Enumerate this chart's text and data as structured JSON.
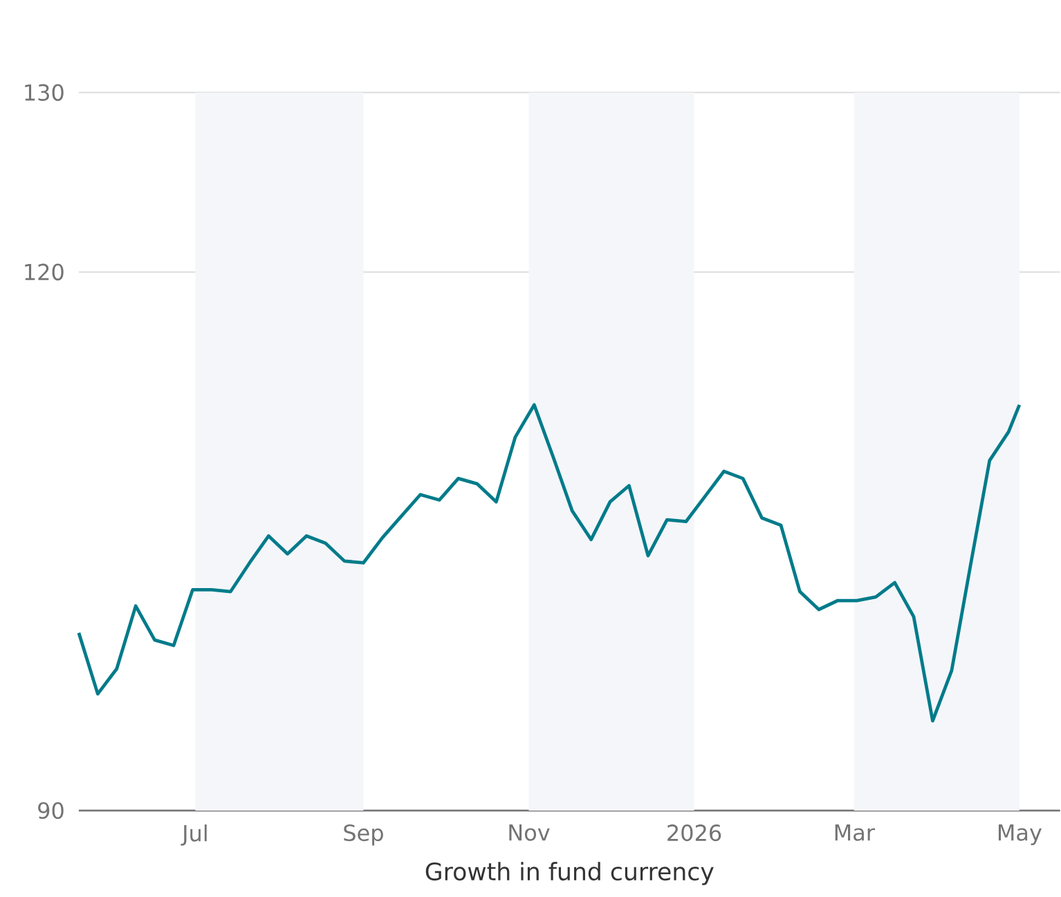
{
  "chart_data": {
    "type": "line",
    "xlabel": "Growth in fund currency",
    "x": [
      "2025-05-19",
      "2025-05-26",
      "2025-06-02",
      "2025-06-09",
      "2025-06-16",
      "2025-06-23",
      "2025-06-30",
      "2025-07-07",
      "2025-07-14",
      "2025-07-21",
      "2025-07-28",
      "2025-08-04",
      "2025-08-11",
      "2025-08-18",
      "2025-08-25",
      "2025-09-01",
      "2025-09-08",
      "2025-09-15",
      "2025-09-22",
      "2025-09-29",
      "2025-10-06",
      "2025-10-13",
      "2025-10-20",
      "2025-10-27",
      "2025-11-03",
      "2025-11-10",
      "2025-11-17",
      "2025-11-24",
      "2025-12-01",
      "2025-12-08",
      "2025-12-15",
      "2025-12-22",
      "2025-12-29",
      "2026-01-05",
      "2026-01-12",
      "2026-01-19",
      "2026-01-26",
      "2026-02-02",
      "2026-02-09",
      "2026-02-16",
      "2026-02-23",
      "2026-03-02",
      "2026-03-09",
      "2026-03-16",
      "2026-03-23",
      "2026-03-30",
      "2026-04-06",
      "2026-04-13",
      "2026-04-20",
      "2026-04-27",
      "2026-05-01"
    ],
    "series": [
      {
        "color": "#007b8a",
        "values": [
          99.9,
          96.5,
          97.9,
          101.4,
          99.5,
          99.2,
          102.3,
          102.3,
          102.2,
          103.8,
          105.3,
          104.3,
          105.3,
          104.9,
          103.9,
          103.8,
          105.2,
          106.4,
          107.6,
          107.3,
          108.5,
          108.2,
          107.2,
          110.8,
          112.6,
          109.7,
          106.7,
          105.1,
          107.2,
          108.1,
          104.2,
          106.2,
          106.1,
          107.5,
          108.9,
          108.5,
          106.3,
          105.9,
          102.2,
          101.2,
          101.7,
          101.7,
          101.9,
          102.7,
          100.8,
          95.0,
          97.8,
          103.7,
          109.5,
          111.1,
          112.6
        ]
      }
    ],
    "xlim": [
      "2025-05-19",
      "2026-05-16"
    ],
    "xticks": [
      {
        "value": "2025-07-01",
        "label": "Jul"
      },
      {
        "value": "2025-09-01",
        "label": "Sep"
      },
      {
        "value": "2025-11-01",
        "label": "Nov"
      },
      {
        "value": "2026-01-01",
        "label": "2026"
      },
      {
        "value": "2026-03-01",
        "label": "Mar"
      },
      {
        "value": "2026-05-01",
        "label": "May"
      }
    ],
    "ylim": [
      90,
      130
    ],
    "yticks": [
      90,
      120,
      130
    ],
    "grid": "y",
    "marker": "none",
    "line_style": "solid",
    "bands": [
      {
        "axis": "x",
        "from": "2025-07-01",
        "to": "2025-09-01",
        "color": "#f4f6fa"
      },
      {
        "axis": "x",
        "from": "2025-11-01",
        "to": "2026-01-01",
        "color": "#f4f6fa"
      },
      {
        "axis": "x",
        "from": "2026-03-01",
        "to": "2026-05-01",
        "color": "#f4f6fa"
      }
    ]
  }
}
